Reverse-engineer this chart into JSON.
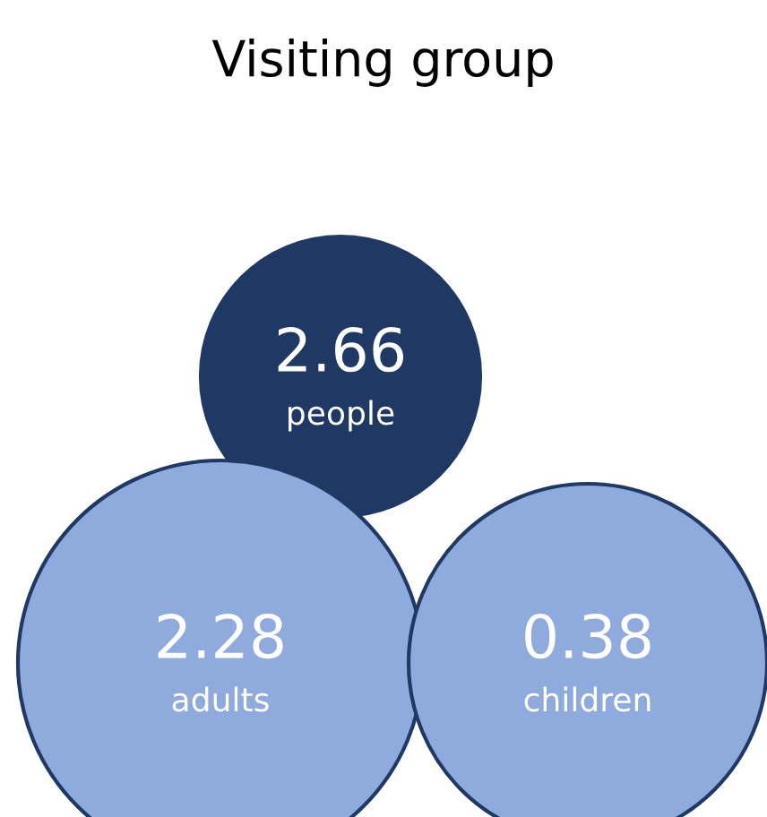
{
  "chart_data": {
    "type": "other",
    "title": "Visiting group",
    "categories": [
      "people",
      "adults",
      "children"
    ],
    "values": [
      2.66,
      2.28,
      0.38
    ],
    "colors": [
      "#1f3864",
      "#8faadc",
      "#8faadc"
    ],
    "data_labels": true
  }
}
